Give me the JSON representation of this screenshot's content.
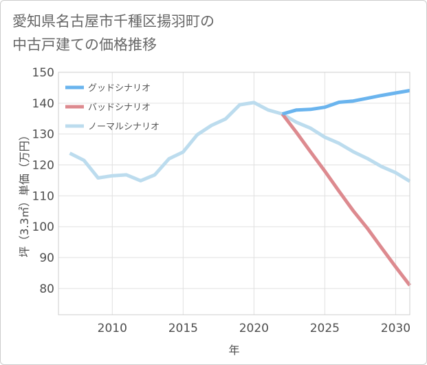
{
  "chart_data": {
    "type": "line",
    "title_lines": [
      "愛知県名古屋市千種区揚羽町の",
      "中古戸建ての価格推移"
    ],
    "xlabel": "年",
    "ylabel": "坪（3.3㎡）単価（万円）",
    "xlim": [
      2006.2,
      2031
    ],
    "ylim": [
      71.5,
      150
    ],
    "xticks": [
      2010,
      2015,
      2020,
      2025,
      2030
    ],
    "yticks": [
      80,
      90,
      100,
      110,
      120,
      130,
      140,
      150
    ],
    "grid": true,
    "legend_position": "top-left",
    "series": [
      {
        "name": "グッドシナリオ",
        "color": "#6ab4ee",
        "points": [
          [
            2022,
            136.5
          ],
          [
            2023,
            137.8
          ],
          [
            2024,
            138.0
          ],
          [
            2025,
            138.7
          ],
          [
            2026,
            140.3
          ],
          [
            2027,
            140.7
          ],
          [
            2028,
            141.6
          ],
          [
            2029,
            142.5
          ],
          [
            2030,
            143.3
          ],
          [
            2031,
            144.1
          ]
        ]
      },
      {
        "name": "バッドシナリオ",
        "color": "#dd8a8f",
        "points": [
          [
            2022,
            136.5
          ],
          [
            2023,
            130.5
          ],
          [
            2024,
            124.2
          ],
          [
            2025,
            118.0
          ],
          [
            2026,
            111.5
          ],
          [
            2027,
            105.2
          ],
          [
            2028,
            99.5
          ],
          [
            2029,
            93.2
          ],
          [
            2030,
            87.0
          ],
          [
            2031,
            81.0
          ]
        ]
      },
      {
        "name": "ノーマルシナリオ",
        "color": "#bcdcee",
        "points": [
          [
            2007,
            123.8
          ],
          [
            2008,
            121.5
          ],
          [
            2009,
            115.8
          ],
          [
            2010,
            116.5
          ],
          [
            2011,
            116.8
          ],
          [
            2012,
            114.9
          ],
          [
            2013,
            116.8
          ],
          [
            2014,
            122.0
          ],
          [
            2015,
            124.2
          ],
          [
            2016,
            129.8
          ],
          [
            2017,
            132.8
          ],
          [
            2018,
            134.9
          ],
          [
            2019,
            139.5
          ],
          [
            2020,
            140.2
          ],
          [
            2021,
            137.8
          ],
          [
            2022,
            136.5
          ],
          [
            2023,
            133.8
          ],
          [
            2024,
            131.9
          ],
          [
            2025,
            129.0
          ],
          [
            2026,
            127.0
          ],
          [
            2027,
            124.3
          ],
          [
            2028,
            122.1
          ],
          [
            2029,
            119.5
          ],
          [
            2030,
            117.5
          ],
          [
            2031,
            114.7
          ]
        ]
      }
    ]
  }
}
